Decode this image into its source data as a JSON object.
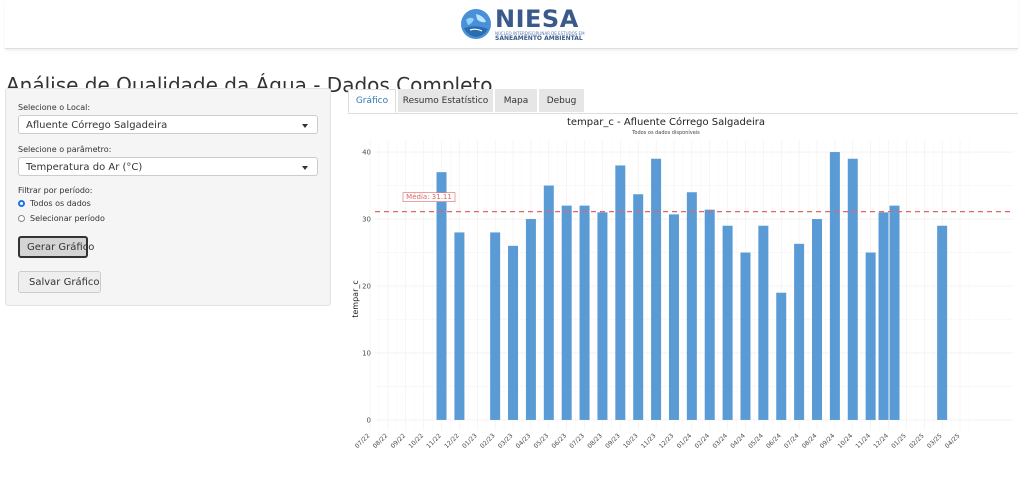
{
  "header": {
    "logo_name": "NIESA",
    "logo_tagline": "NÚCLEO INTERDISCIPLINAR DE ESTUDOS EM",
    "logo_tagline2": "SANEAMENTO AMBIENTAL"
  },
  "page_title": "Análise de Qualidade da Água - Dados Completo",
  "sidebar": {
    "local_label": "Selecione o Local:",
    "local_value": "Afluente Córrego Salgadeira",
    "param_label": "Selecione o parâmetro:",
    "param_value": "Temperatura do Ar (°C)",
    "period_label": "Filtrar por período:",
    "period_options": [
      "Todos os dados",
      "Selecionar período"
    ],
    "period_selected": 0,
    "generate_label": "Gerar Gráfico",
    "save_label": "Salvar Gráfico"
  },
  "tabs": [
    {
      "label": "Gráfico",
      "active": true
    },
    {
      "label": "Resumo Estatístico",
      "active": false
    },
    {
      "label": "Mapa",
      "active": false
    },
    {
      "label": "Debug",
      "active": false
    }
  ],
  "colors": {
    "bar": "#5b9bd5",
    "mean_line": "#e06666",
    "accent": "#1a73e8"
  },
  "chart_data": {
    "type": "bar",
    "title": "tempar_c - Afluente Córrego Salgadeira",
    "subtitle": "Todos os dados disponíveis",
    "xlabel": "",
    "ylabel": "tempar_c",
    "ylim": [
      0,
      40
    ],
    "yticks": [
      0,
      10,
      20,
      30,
      40
    ],
    "x_months": [
      "07/22",
      "08/22",
      "09/22",
      "10/22",
      "11/22",
      "12/22",
      "01/23",
      "02/23",
      "03/23",
      "04/23",
      "05/23",
      "06/23",
      "07/23",
      "08/23",
      "09/23",
      "10/23",
      "11/23",
      "12/23",
      "01/24",
      "02/24",
      "03/24",
      "04/24",
      "05/24",
      "06/24",
      "07/24",
      "08/24",
      "09/24",
      "10/24",
      "11/24",
      "12/24",
      "01/25",
      "02/25",
      "03/25",
      "04/25"
    ],
    "points": [
      {
        "date": "11/22",
        "value": 37
      },
      {
        "date": "12/22",
        "value": 28
      },
      {
        "date": "02/23",
        "value": 28
      },
      {
        "date": "03/23",
        "value": 26
      },
      {
        "date": "04/23",
        "value": 30
      },
      {
        "date": "05/23",
        "value": 35
      },
      {
        "date": "06/23",
        "value": 32
      },
      {
        "date": "07/23",
        "value": 32
      },
      {
        "date": "08/23",
        "value": 31
      },
      {
        "date": "09/23",
        "value": 38
      },
      {
        "date": "10/23",
        "value": 33.7
      },
      {
        "date": "11/23",
        "value": 39
      },
      {
        "date": "12/23",
        "value": 30.7
      },
      {
        "date": "01/24",
        "value": 34
      },
      {
        "date": "02/24",
        "value": 31.4
      },
      {
        "date": "03/24",
        "value": 29
      },
      {
        "date": "04/24",
        "value": 25
      },
      {
        "date": "05/24",
        "value": 29
      },
      {
        "date": "06/24",
        "value": 19
      },
      {
        "date": "07/24",
        "value": 26.3
      },
      {
        "date": "08/24",
        "value": 30
      },
      {
        "date": "09/24",
        "value": 40
      },
      {
        "date": "10/24",
        "value": 39
      },
      {
        "date": "11/24",
        "value": 25
      },
      {
        "date": "12/24",
        "value": 31
      },
      {
        "date": "12/24b",
        "value": 32
      },
      {
        "date": "03/25",
        "value": 29
      }
    ],
    "mean": 31.11,
    "mean_label": "Média: 31.11",
    "grid": true,
    "legend": "none"
  }
}
